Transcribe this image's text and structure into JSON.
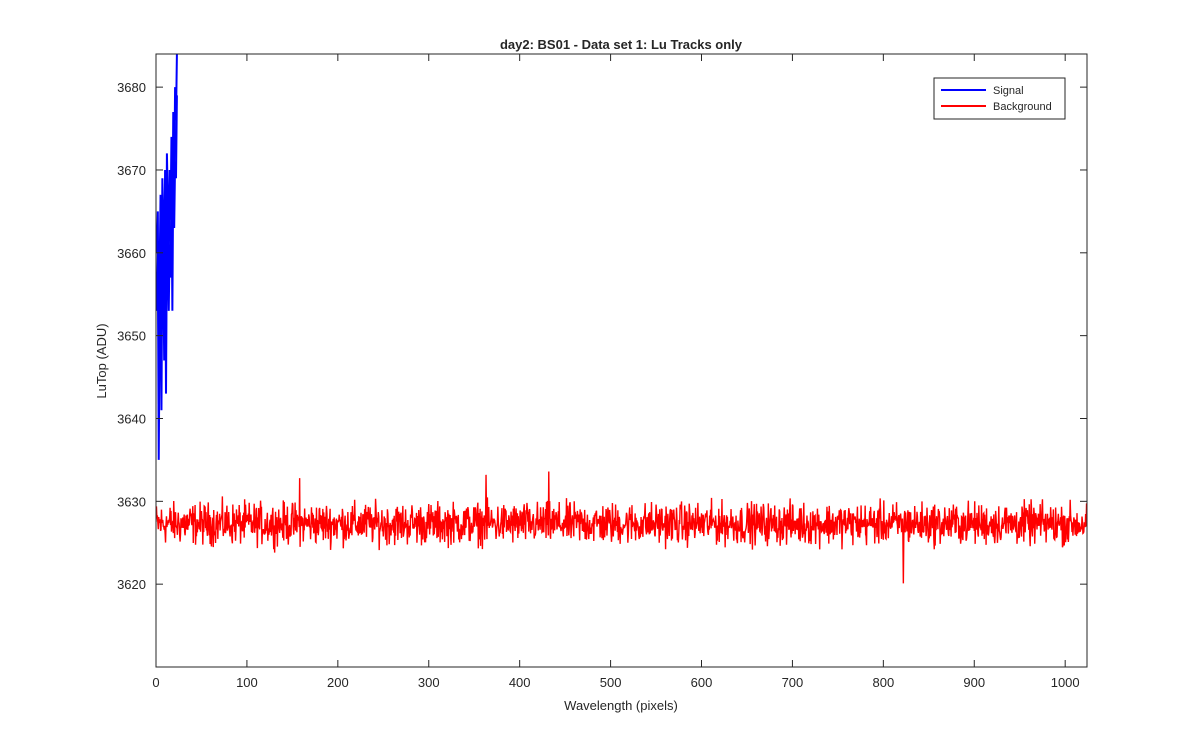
{
  "chart_data": {
    "type": "line",
    "title": "day2: BS01 - Data set 1: Lu Tracks only",
    "xlabel": "Wavelength (pixels)",
    "ylabel": "LuTop (ADU)",
    "xlim": [
      0,
      1024
    ],
    "ylim": [
      3610,
      3684
    ],
    "xticks": [
      "0",
      "100",
      "200",
      "300",
      "400",
      "500",
      "600",
      "700",
      "800",
      "900",
      "1000"
    ],
    "yticks": [
      "3620",
      "3630",
      "3640",
      "3650",
      "3660",
      "3670",
      "3680"
    ],
    "grid": false,
    "legend_position": "top-right",
    "series": [
      {
        "name": "Signal",
        "color": "#0000ff",
        "x": [
          0,
          1,
          2,
          3,
          4,
          5,
          6,
          7,
          8,
          9,
          10,
          11,
          12,
          13,
          14,
          15,
          16,
          17,
          18,
          19,
          20,
          21,
          22,
          23
        ],
        "y": [
          3663,
          3660,
          3665,
          3644,
          3658,
          3667,
          3650,
          3669,
          3664,
          3656,
          3670,
          3648,
          3672,
          3666,
          3658,
          3670,
          3664,
          3674,
          3662,
          3677,
          3668,
          3680,
          3676,
          3684
        ]
      },
      {
        "name": "Background",
        "color": "#ff0000",
        "x_range": [
          0,
          1024
        ],
        "mean": 3627.3,
        "noise_amplitude": 2.3,
        "min": 3620,
        "max": 3633.6,
        "note_points": [
          {
            "x": 158,
            "y": 3632.8
          },
          {
            "x": 363,
            "y": 3633.2
          },
          {
            "x": 432,
            "y": 3633.6
          },
          {
            "x": 822,
            "y": 3620.1
          }
        ]
      }
    ]
  }
}
